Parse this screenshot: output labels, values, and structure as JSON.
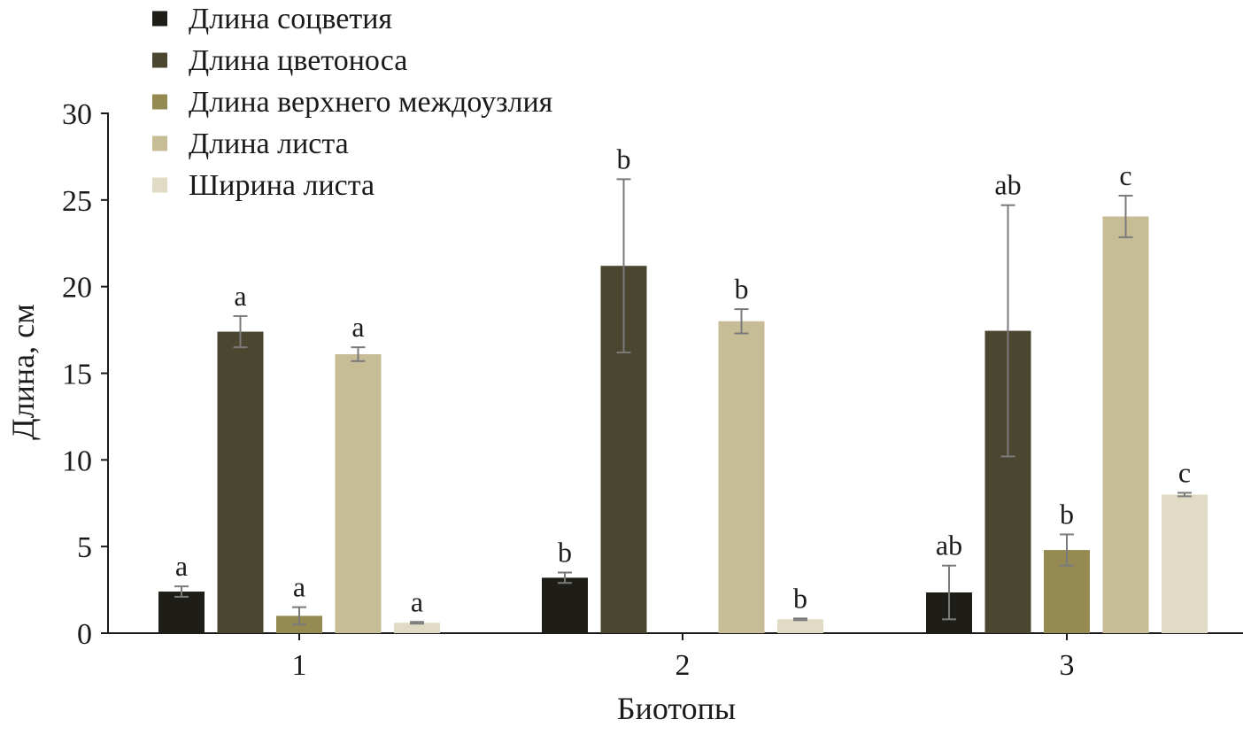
{
  "chart_data": {
    "type": "bar",
    "title": "",
    "xlabel": "Биотопы",
    "ylabel": "Длина, см",
    "ylim": [
      0,
      30
    ],
    "yticks": [
      0,
      5,
      10,
      15,
      20,
      25,
      30
    ],
    "categories": [
      "1",
      "2",
      "3"
    ],
    "grid": false,
    "legend_position": "top-left",
    "series": [
      {
        "name": "Длина соцветия",
        "color": "#1f1d17",
        "values": [
          2.4,
          3.2,
          2.35
        ],
        "errors": [
          0.3,
          0.3,
          1.55
        ],
        "labels": [
          "a",
          "b",
          "ab"
        ]
      },
      {
        "name": "Длина цветоноса",
        "color": "#4b4630",
        "values": [
          17.4,
          21.2,
          17.45
        ],
        "errors": [
          0.9,
          5.0,
          7.25
        ],
        "labels": [
          "a",
          "b",
          "ab"
        ]
      },
      {
        "name": "Длина верхнего междоузлия",
        "color": "#958a52",
        "values": [
          1.0,
          null,
          4.8
        ],
        "errors": [
          0.5,
          null,
          0.9
        ],
        "labels": [
          "a",
          "",
          "b"
        ]
      },
      {
        "name": "Длина листа",
        "color": "#c6bd97",
        "values": [
          16.1,
          18.0,
          24.05
        ],
        "errors": [
          0.4,
          0.7,
          1.2
        ],
        "labels": [
          "a",
          "b",
          "c"
        ]
      },
      {
        "name": "Ширина листа",
        "color": "#e1dbc5",
        "values": [
          0.6,
          0.8,
          8.0
        ],
        "errors": [
          0.05,
          0.05,
          0.1
        ],
        "labels": [
          "a",
          "b",
          "c"
        ]
      }
    ]
  }
}
